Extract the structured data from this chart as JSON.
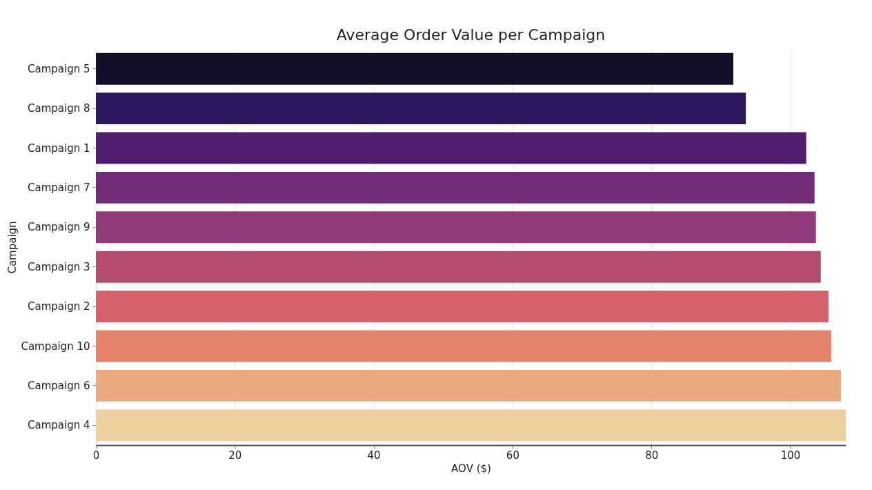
{
  "chart_data": {
    "type": "bar",
    "orientation": "horizontal",
    "title": "Average Order Value per Campaign",
    "xlabel": "AOV ($)",
    "ylabel": "Campaign",
    "categories": [
      "Campaign 5",
      "Campaign 8",
      "Campaign 1",
      "Campaign 7",
      "Campaign 9",
      "Campaign 3",
      "Campaign 2",
      "Campaign 10",
      "Campaign 6",
      "Campaign 4"
    ],
    "values": [
      91.8,
      93.6,
      102.3,
      103.5,
      103.7,
      104.4,
      105.5,
      105.9,
      107.3,
      108
    ],
    "colors": [
      "#140e2a",
      "#2d1860",
      "#511e6f",
      "#722b78",
      "#903a7a",
      "#b54c72",
      "#d6606b",
      "#e5846a",
      "#ebaa80",
      "#f1d09f"
    ],
    "xlim": [
      0,
      108
    ],
    "xticks": [
      0,
      20,
      40,
      60,
      80,
      100
    ],
    "grid": "x"
  }
}
